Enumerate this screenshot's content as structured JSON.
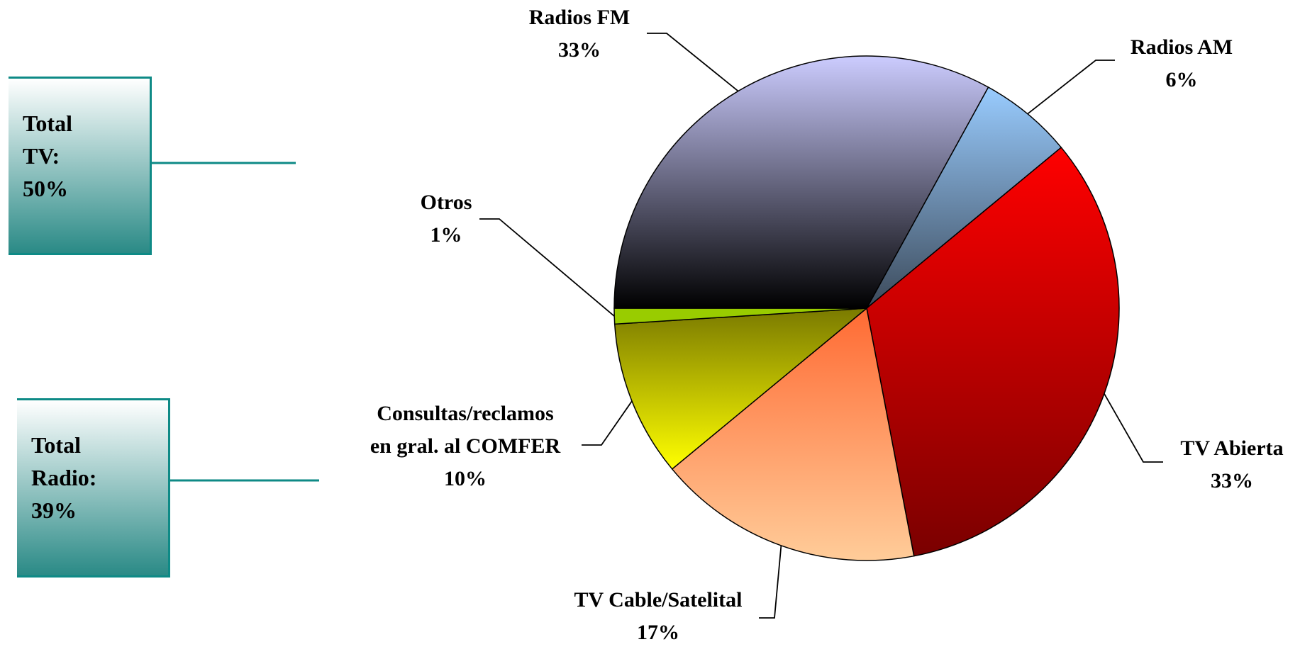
{
  "chart_data": {
    "type": "pie",
    "categories": [
      "Radios AM",
      "TV Abierta",
      "TV Cable/Satelital",
      "Consultas/reclamos en gral. al COMFER",
      "Otros",
      "Radios FM"
    ],
    "values": [
      6,
      33,
      17,
      10,
      1,
      33
    ],
    "value_labels": [
      "6%",
      "33%",
      "17%",
      "10%",
      "1%",
      "33%"
    ],
    "gradients": [
      {
        "from": "#99ccff",
        "to": "#3c4a5a"
      },
      {
        "from": "#ff0000",
        "to": "#7a0000"
      },
      {
        "from": "#ff6a33",
        "to": "#ffcc99"
      },
      {
        "from": "#7a7a00",
        "to": "#ffff00"
      },
      {
        "from": "#99cc00",
        "to": "#99cc00"
      },
      {
        "from": "#ccccff",
        "to": "#000000"
      }
    ],
    "annotations": [
      "Total TV: 50%",
      "Total Radio: 39%"
    ]
  }
}
